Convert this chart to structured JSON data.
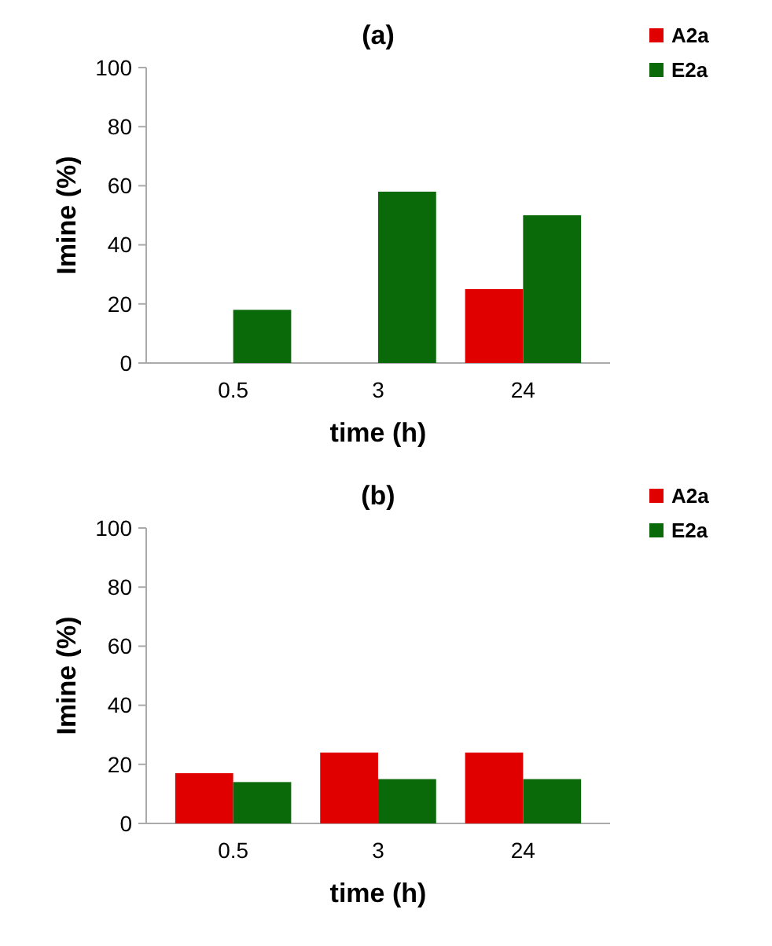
{
  "chart_data": [
    {
      "type": "bar",
      "title": "(a)",
      "xlabel": "time (h)",
      "ylabel": "Imine (%)",
      "categories": [
        "0.5",
        "3",
        "24"
      ],
      "series": [
        {
          "name": "A2a",
          "color": "#e00000",
          "values": [
            0,
            0,
            25
          ]
        },
        {
          "name": "E2a",
          "color": "#0a6a0a",
          "values": [
            18,
            58,
            50
          ]
        }
      ],
      "ylim": [
        0,
        100
      ],
      "yticks": [
        0,
        20,
        40,
        60,
        80,
        100
      ],
      "legend": "top right"
    },
    {
      "type": "bar",
      "title": "(b)",
      "xlabel": "time (h)",
      "ylabel": "Imine (%)",
      "categories": [
        "0.5",
        "3",
        "24"
      ],
      "series": [
        {
          "name": "A2a",
          "color": "#e00000",
          "values": [
            17,
            24,
            24
          ]
        },
        {
          "name": "E2a",
          "color": "#0a6a0a",
          "values": [
            14,
            15,
            15
          ]
        }
      ],
      "ylim": [
        0,
        100
      ],
      "yticks": [
        0,
        20,
        40,
        60,
        80,
        100
      ],
      "legend": "top right"
    }
  ]
}
